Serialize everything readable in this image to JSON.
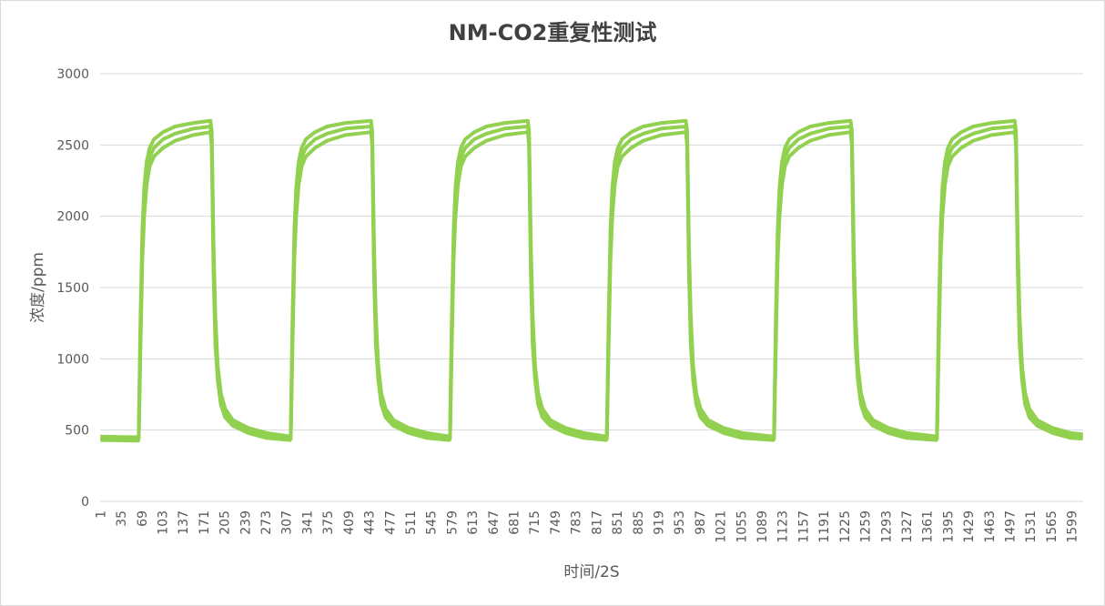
{
  "chart_data": {
    "type": "line",
    "title": "NM-CO2重复性测试",
    "xlabel": "时间/2S",
    "ylabel": "浓度/ppm",
    "ylim": [
      0,
      3000
    ],
    "yticks": [
      0,
      500,
      1000,
      1500,
      2000,
      2500,
      3000
    ],
    "xlim": [
      1,
      1617
    ],
    "xtick_start": 1,
    "xtick_step": 34,
    "xtick_labels": [
      "1",
      "35",
      "69",
      "103",
      "137",
      "171",
      "205",
      "239",
      "273",
      "307",
      "341",
      "375",
      "409",
      "443",
      "477",
      "511",
      "545",
      "579",
      "613",
      "647",
      "681",
      "715",
      "749",
      "783",
      "817",
      "851",
      "885",
      "919",
      "953",
      "987",
      "1021",
      "1055",
      "1089",
      "1123",
      "1157",
      "1191",
      "1225",
      "1259",
      "1293",
      "1327",
      "1361",
      "1395",
      "1429",
      "1463",
      "1497",
      "1531",
      "1565",
      "1599"
    ],
    "grid": true,
    "legend": "none",
    "color": "#92d050",
    "x": [
      1,
      30,
      63,
      64,
      67,
      70,
      73,
      77,
      82,
      89,
      104,
      124,
      154,
      182,
      184,
      187,
      190,
      194,
      199,
      206,
      219,
      244,
      274,
      313,
      314,
      317,
      320,
      323,
      327,
      332,
      339,
      354,
      374,
      404,
      446,
      448,
      451,
      454,
      458,
      463,
      470,
      483,
      508,
      538,
      575,
      576,
      579,
      582,
      585,
      589,
      594,
      601,
      616,
      636,
      666,
      704,
      706,
      709,
      712,
      716,
      721,
      728,
      741,
      766,
      796,
      833,
      834,
      837,
      840,
      843,
      847,
      852,
      859,
      874,
      894,
      924,
      964,
      966,
      969,
      972,
      976,
      981,
      988,
      1001,
      1026,
      1056,
      1108,
      1109,
      1112,
      1115,
      1118,
      1122,
      1127,
      1134,
      1149,
      1169,
      1199,
      1235,
      1237,
      1240,
      1243,
      1247,
      1252,
      1259,
      1272,
      1297,
      1327,
      1376,
      1377,
      1380,
      1383,
      1386,
      1390,
      1395,
      1402,
      1417,
      1437,
      1467,
      1505,
      1507,
      1510,
      1513,
      1517,
      1522,
      1529,
      1542,
      1567,
      1597,
      1617
    ],
    "series": [
      {
        "values": [
          455,
          452,
          450,
          465,
          1300,
          1900,
          2200,
          2380,
          2480,
          2540,
          2590,
          2630,
          2655,
          2670,
          2600,
          1800,
          1300,
          950,
          760,
          650,
          570,
          515,
          480,
          455,
          465,
          1300,
          1900,
          2200,
          2380,
          2480,
          2540,
          2590,
          2630,
          2655,
          2670,
          2600,
          1800,
          1300,
          950,
          760,
          650,
          570,
          515,
          480,
          455,
          465,
          1300,
          1900,
          2200,
          2380,
          2480,
          2540,
          2590,
          2630,
          2655,
          2670,
          2600,
          1800,
          1300,
          950,
          760,
          650,
          570,
          515,
          480,
          455,
          465,
          1300,
          1900,
          2200,
          2380,
          2480,
          2540,
          2590,
          2630,
          2655,
          2670,
          2600,
          1800,
          1300,
          950,
          760,
          650,
          570,
          515,
          480,
          455,
          465,
          1300,
          1900,
          2200,
          2380,
          2480,
          2540,
          2590,
          2630,
          2655,
          2670,
          2600,
          1800,
          1300,
          950,
          760,
          650,
          570,
          515,
          480,
          455,
          465,
          1300,
          1900,
          2200,
          2380,
          2480,
          2540,
          2590,
          2630,
          2655,
          2670,
          2600,
          1800,
          1300,
          950,
          760,
          650,
          570,
          515,
          480,
          470
        ]
      },
      {
        "values": [
          442,
          440,
          438,
          452,
          1200,
          1800,
          2100,
          2300,
          2415,
          2480,
          2540,
          2580,
          2615,
          2630,
          2550,
          1700,
          1200,
          900,
          720,
          620,
          550,
          498,
          462,
          442,
          452,
          1200,
          1800,
          2100,
          2300,
          2415,
          2480,
          2540,
          2580,
          2615,
          2630,
          2550,
          1700,
          1200,
          900,
          720,
          620,
          550,
          498,
          462,
          442,
          452,
          1200,
          1800,
          2100,
          2300,
          2415,
          2480,
          2540,
          2580,
          2615,
          2630,
          2550,
          1700,
          1200,
          900,
          720,
          620,
          550,
          498,
          462,
          442,
          452,
          1200,
          1800,
          2100,
          2300,
          2415,
          2480,
          2540,
          2580,
          2615,
          2630,
          2550,
          1700,
          1200,
          900,
          720,
          620,
          550,
          498,
          462,
          442,
          452,
          1200,
          1800,
          2100,
          2300,
          2415,
          2480,
          2540,
          2580,
          2615,
          2630,
          2550,
          1700,
          1200,
          900,
          720,
          620,
          550,
          498,
          462,
          442,
          452,
          1200,
          1800,
          2100,
          2300,
          2415,
          2480,
          2540,
          2580,
          2615,
          2630,
          2550,
          1700,
          1200,
          900,
          720,
          620,
          550,
          498,
          462,
          455
        ]
      },
      {
        "values": [
          430,
          428,
          425,
          440,
          1100,
          1700,
          2000,
          2220,
          2350,
          2420,
          2480,
          2530,
          2570,
          2590,
          2500,
          1600,
          1100,
          850,
          680,
          590,
          530,
          480,
          445,
          430,
          440,
          1100,
          1700,
          2000,
          2220,
          2350,
          2420,
          2480,
          2530,
          2570,
          2590,
          2500,
          1600,
          1100,
          850,
          680,
          590,
          530,
          480,
          445,
          430,
          440,
          1100,
          1700,
          2000,
          2220,
          2350,
          2420,
          2480,
          2530,
          2570,
          2590,
          2500,
          1600,
          1100,
          850,
          680,
          590,
          530,
          480,
          445,
          430,
          440,
          1100,
          1700,
          2000,
          2220,
          2350,
          2420,
          2480,
          2530,
          2570,
          2590,
          2500,
          1600,
          1100,
          850,
          680,
          590,
          530,
          480,
          445,
          430,
          440,
          1100,
          1700,
          2000,
          2220,
          2350,
          2420,
          2480,
          2530,
          2570,
          2590,
          2500,
          1600,
          1100,
          850,
          680,
          590,
          530,
          480,
          445,
          430,
          440,
          1100,
          1700,
          2000,
          2220,
          2350,
          2420,
          2480,
          2530,
          2570,
          2590,
          2500,
          1600,
          1100,
          850,
          680,
          590,
          530,
          480,
          445,
          440
        ]
      }
    ]
  }
}
